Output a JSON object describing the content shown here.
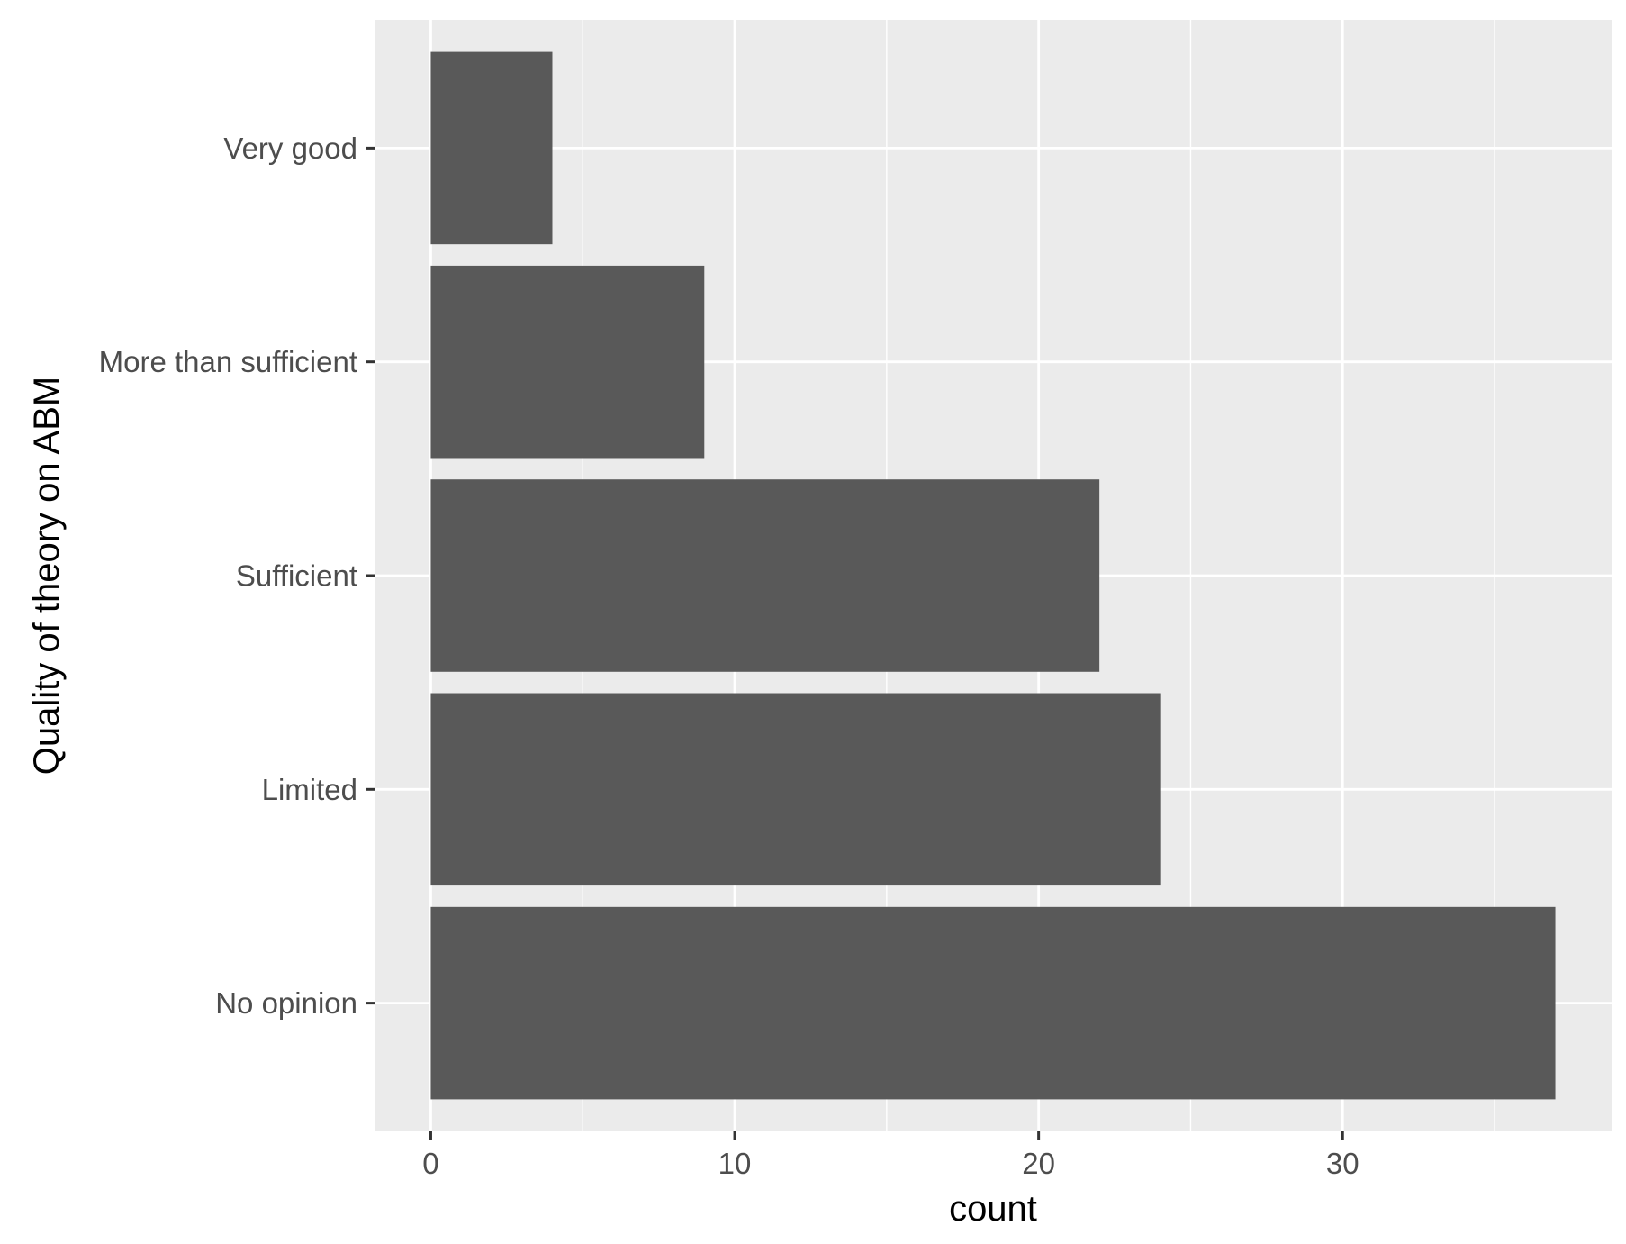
{
  "chart_data": {
    "type": "bar",
    "orientation": "horizontal",
    "categories": [
      "No opinion",
      "Limited",
      "Sufficient",
      "More than sufficient",
      "Very good"
    ],
    "values": [
      37,
      24,
      22,
      9,
      4
    ],
    "xlabel": "count",
    "ylabel": "Quality of theory on ABM",
    "xlim": [
      -1.85,
      38.85
    ],
    "x_ticks": [
      0,
      10,
      20,
      30
    ],
    "x_tick_labels": [
      "0",
      "10",
      "20",
      "30"
    ],
    "grid": true,
    "panel_color": "#ebebeb",
    "bar_color": "#595959",
    "grid_color": "#ffffff"
  }
}
